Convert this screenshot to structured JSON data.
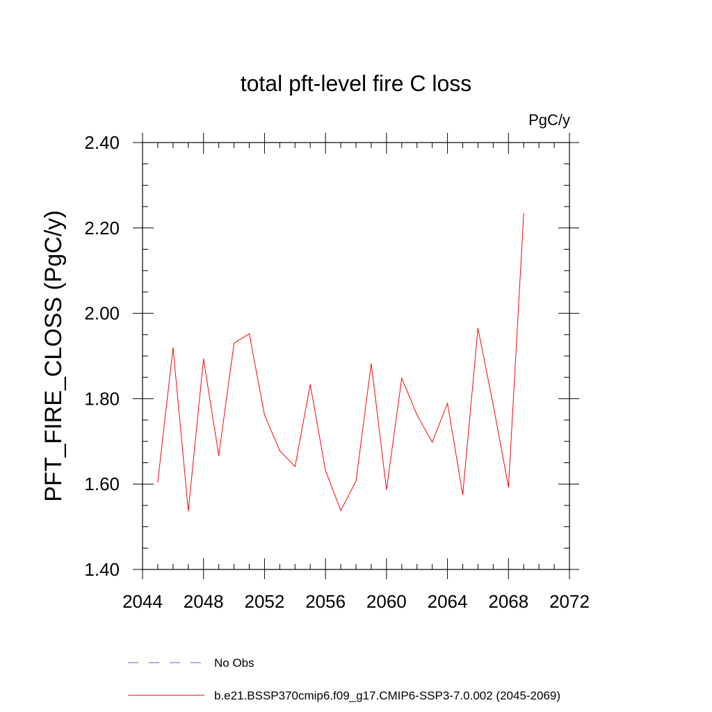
{
  "chart_data": {
    "type": "line",
    "title": "total pft-level fire C loss",
    "units_label": "PgC/y",
    "xlabel": "",
    "ylabel": "PFT_FIRE_CLOSS  (PgC/y)",
    "xlim": [
      2044,
      2072
    ],
    "ylim": [
      1.4,
      2.4
    ],
    "x_ticks": [
      2044,
      2048,
      2052,
      2056,
      2060,
      2064,
      2068,
      2072
    ],
    "y_ticks": [
      1.4,
      1.6,
      1.8,
      2.0,
      2.2,
      2.4
    ],
    "y_tick_labels": [
      "1.40",
      "1.60",
      "1.80",
      "2.00",
      "2.20",
      "2.40"
    ],
    "series": [
      {
        "name": "b.e21.BSSP370cmip6.f09_g17.CMIP6-SSP3-7.0.002 (2045-2069)",
        "color": "#ff0000",
        "style": "solid",
        "x": [
          2045,
          2046,
          2047,
          2048,
          2049,
          2050,
          2051,
          2052,
          2053,
          2054,
          2055,
          2056,
          2057,
          2058,
          2059,
          2060,
          2061,
          2062,
          2063,
          2064,
          2065,
          2066,
          2067,
          2068,
          2069
        ],
        "values": [
          1.605,
          1.919,
          1.537,
          1.893,
          1.667,
          1.93,
          1.952,
          1.762,
          1.678,
          1.641,
          1.833,
          1.632,
          1.538,
          1.607,
          1.882,
          1.587,
          1.848,
          1.762,
          1.698,
          1.789,
          1.575,
          1.965,
          1.785,
          1.593,
          2.234
        ]
      }
    ],
    "legend": [
      {
        "label": "No Obs",
        "color": "#6a5acd",
        "style": "dashed"
      },
      {
        "label": "b.e21.BSSP370cmip6.f09_g17.CMIP6-SSP3-7.0.002 (2045-2069)",
        "color": "#ff0000",
        "style": "solid"
      }
    ],
    "legend_position": "bottom-left"
  }
}
